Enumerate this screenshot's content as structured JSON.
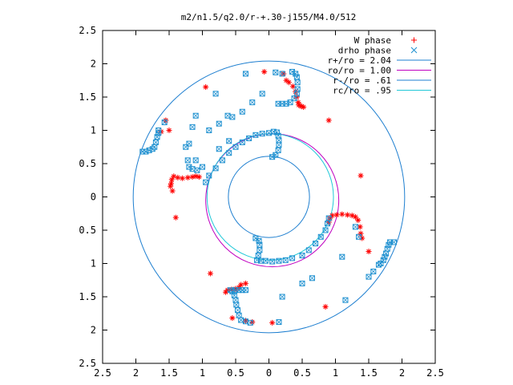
{
  "chart_data": {
    "type": "scatter",
    "title": "m2/n1.5/q2.0/r-+.30-j155/M4.0/512",
    "xlabel": "",
    "ylabel": "",
    "xlim": [
      -2.5,
      2.5
    ],
    "ylim": [
      -2.5,
      2.5
    ],
    "grid": false,
    "legend_position": "top-right",
    "x_ticks": [
      {
        "value": -2.5,
        "label": "2.5"
      },
      {
        "value": -2,
        "label": "2"
      },
      {
        "value": -1.5,
        "label": "1.5"
      },
      {
        "value": -1,
        "label": "1"
      },
      {
        "value": -0.5,
        "label": "0.5"
      },
      {
        "value": 0,
        "label": "0"
      },
      {
        "value": 0.5,
        "label": "0.5"
      },
      {
        "value": 1,
        "label": "1"
      },
      {
        "value": 1.5,
        "label": "1.5"
      },
      {
        "value": 2,
        "label": "2"
      },
      {
        "value": 2.5,
        "label": "2.5"
      }
    ],
    "y_ticks": [
      {
        "value": 2.5,
        "label": "2.5"
      },
      {
        "value": 2,
        "label": "2"
      },
      {
        "value": 1.5,
        "label": "1.5"
      },
      {
        "value": 1,
        "label": "1"
      },
      {
        "value": 0.5,
        "label": "0.5"
      },
      {
        "value": 0,
        "label": "0"
      },
      {
        "value": -0.5,
        "label": "0.5"
      },
      {
        "value": -1,
        "label": "1"
      },
      {
        "value": -1.5,
        "label": "1.5"
      },
      {
        "value": -2,
        "label": "2"
      },
      {
        "value": -2.5,
        "label": "2.5"
      }
    ],
    "series": [
      {
        "name": "W phase",
        "marker": "plus-star",
        "color": "#ff0000",
        "points": [
          [
            0.3,
            1.72
          ],
          [
            0.36,
            1.66
          ],
          [
            0.4,
            1.58
          ],
          [
            0.42,
            1.5
          ],
          [
            0.44,
            1.42
          ],
          [
            0.47,
            1.37
          ],
          [
            0.52,
            1.35
          ],
          [
            0.26,
            1.75
          ],
          [
            0.22,
            1.85
          ],
          [
            -0.07,
            1.88
          ],
          [
            0.45,
            1.38
          ],
          [
            0.49,
            1.36
          ],
          [
            -1.43,
            0.31
          ],
          [
            -1.37,
            0.29
          ],
          [
            -1.3,
            0.28
          ],
          [
            -1.22,
            0.29
          ],
          [
            -1.15,
            0.3
          ],
          [
            -1.1,
            0.31
          ],
          [
            -1.05,
            0.3
          ],
          [
            -1.46,
            0.26
          ],
          [
            -1.47,
            0.2
          ],
          [
            -1.48,
            0.16
          ],
          [
            -1.45,
            0.09
          ],
          [
            -1.4,
            -0.31
          ],
          [
            -1.5,
            1.0
          ],
          [
            -1.55,
            1.15
          ],
          [
            -1.62,
            0.98
          ],
          [
            -0.95,
            1.65
          ],
          [
            0.95,
            -0.28
          ],
          [
            1.02,
            -0.27
          ],
          [
            1.1,
            -0.26
          ],
          [
            1.18,
            -0.27
          ],
          [
            1.25,
            -0.28
          ],
          [
            1.3,
            -0.3
          ],
          [
            1.34,
            -0.35
          ],
          [
            1.37,
            -0.45
          ],
          [
            1.38,
            -0.55
          ],
          [
            1.4,
            -0.62
          ],
          [
            0.92,
            -0.32
          ],
          [
            0.9,
            -0.38
          ],
          [
            1.38,
            0.32
          ],
          [
            1.5,
            -0.82
          ],
          [
            0.9,
            1.15
          ],
          [
            -0.42,
            -1.32
          ],
          [
            -0.45,
            -1.36
          ],
          [
            -0.5,
            -1.38
          ],
          [
            -0.56,
            -1.39
          ],
          [
            -0.62,
            -1.4
          ],
          [
            -0.65,
            -1.43
          ],
          [
            -0.35,
            -1.3
          ],
          [
            -0.88,
            -1.15
          ],
          [
            -0.25,
            -1.88
          ],
          [
            -0.35,
            -1.86
          ],
          [
            0.05,
            -1.89
          ],
          [
            0.85,
            -1.65
          ],
          [
            -0.55,
            -1.82
          ]
        ]
      },
      {
        "name": "drho phase",
        "marker": "x-square",
        "color": "#1e90d0",
        "points": [
          [
            0.35,
            1.88
          ],
          [
            0.4,
            1.85
          ],
          [
            0.42,
            1.8
          ],
          [
            0.43,
            1.72
          ],
          [
            0.43,
            1.62
          ],
          [
            0.42,
            1.55
          ],
          [
            0.38,
            1.48
          ],
          [
            0.32,
            1.42
          ],
          [
            0.26,
            1.4
          ],
          [
            0.2,
            1.4
          ],
          [
            0.14,
            1.4
          ],
          [
            0.1,
            1.87
          ],
          [
            -0.35,
            1.85
          ],
          [
            0.2,
            1.85
          ],
          [
            -0.1,
            1.55
          ],
          [
            -0.25,
            1.42
          ],
          [
            -0.4,
            1.28
          ],
          [
            -0.55,
            1.2
          ],
          [
            -0.75,
            1.1
          ],
          [
            -0.9,
            1.0
          ],
          [
            -1.1,
            1.22
          ],
          [
            -1.15,
            1.05
          ],
          [
            -1.2,
            0.8
          ],
          [
            -1.25,
            0.75
          ],
          [
            -1.22,
            0.55
          ],
          [
            -1.2,
            0.45
          ],
          [
            -1.15,
            0.42
          ],
          [
            -1.08,
            0.4
          ],
          [
            -0.8,
            1.55
          ],
          [
            -0.62,
            1.22
          ],
          [
            -1.85,
            0.68
          ],
          [
            -1.8,
            0.7
          ],
          [
            -1.75,
            0.72
          ],
          [
            -1.72,
            0.75
          ],
          [
            -1.7,
            0.82
          ],
          [
            -1.68,
            0.9
          ],
          [
            -1.66,
            0.96
          ],
          [
            -1.66,
            1.0
          ],
          [
            -1.9,
            0.68
          ],
          [
            -1.57,
            1.12
          ],
          [
            0.07,
            0.98
          ],
          [
            0.12,
            0.97
          ],
          [
            0.14,
            0.92
          ],
          [
            0.15,
            0.85
          ],
          [
            0.15,
            0.78
          ],
          [
            0.14,
            0.7
          ],
          [
            0.1,
            0.63
          ],
          [
            0.05,
            0.6
          ],
          [
            0.0,
            0.96
          ],
          [
            -0.1,
            0.95
          ],
          [
            -0.2,
            0.93
          ],
          [
            -0.3,
            0.88
          ],
          [
            -0.4,
            0.82
          ],
          [
            -0.5,
            0.75
          ],
          [
            -0.6,
            0.66
          ],
          [
            -0.7,
            0.55
          ],
          [
            -0.8,
            0.43
          ],
          [
            -0.9,
            0.32
          ],
          [
            -0.95,
            0.22
          ],
          [
            -1.0,
            0.45
          ],
          [
            -1.1,
            0.55
          ],
          [
            -0.75,
            0.72
          ],
          [
            -0.6,
            0.84
          ],
          [
            -0.2,
            -0.62
          ],
          [
            -0.15,
            -0.66
          ],
          [
            -0.14,
            -0.72
          ],
          [
            -0.14,
            -0.8
          ],
          [
            -0.16,
            -0.88
          ],
          [
            -0.18,
            -0.95
          ],
          [
            -0.12,
            -0.96
          ],
          [
            -0.05,
            -0.96
          ],
          [
            0.05,
            -0.97
          ],
          [
            0.15,
            -0.96
          ],
          [
            0.25,
            -0.95
          ],
          [
            0.35,
            -0.92
          ],
          [
            0.5,
            -0.88
          ],
          [
            0.6,
            -0.8
          ],
          [
            0.7,
            -0.7
          ],
          [
            0.78,
            -0.6
          ],
          [
            0.85,
            -0.5
          ],
          [
            0.88,
            -0.4
          ],
          [
            0.9,
            -0.32
          ],
          [
            -0.55,
            -1.42
          ],
          [
            -0.52,
            -1.48
          ],
          [
            -0.5,
            -1.55
          ],
          [
            -0.49,
            -1.62
          ],
          [
            -0.47,
            -1.7
          ],
          [
            -0.45,
            -1.78
          ],
          [
            -0.42,
            -1.85
          ],
          [
            -0.35,
            -1.87
          ],
          [
            -0.28,
            -1.89
          ],
          [
            -0.58,
            -1.4
          ],
          [
            -0.5,
            -1.4
          ],
          [
            -0.45,
            -1.4
          ],
          [
            -0.4,
            -1.4
          ],
          [
            -0.35,
            -1.4
          ],
          [
            0.15,
            -1.88
          ],
          [
            0.2,
            -1.5
          ],
          [
            0.5,
            -1.3
          ],
          [
            0.65,
            -1.22
          ],
          [
            1.1,
            -0.9
          ],
          [
            1.15,
            -1.55
          ],
          [
            1.3,
            -0.45
          ],
          [
            1.35,
            -0.6
          ],
          [
            1.82,
            -0.68
          ],
          [
            1.8,
            -0.72
          ],
          [
            1.78,
            -0.78
          ],
          [
            1.76,
            -0.85
          ],
          [
            1.74,
            -0.9
          ],
          [
            1.72,
            -0.95
          ],
          [
            1.68,
            -1.0
          ],
          [
            1.65,
            -1.02
          ],
          [
            1.88,
            -0.68
          ],
          [
            1.57,
            -1.12
          ],
          [
            1.5,
            -1.2
          ]
        ]
      }
    ],
    "circles": [
      {
        "name": "r+/ro = 2.04",
        "radius": 2.04,
        "cx": 0,
        "cy": 0,
        "color": "#1e7fd0"
      },
      {
        "name": "ro/ro = 1.00",
        "radius": 1.0,
        "cx": 0.05,
        "cy": -0.05,
        "color": "#c000c0"
      },
      {
        "name": "r-/ro = .61",
        "radius": 0.61,
        "cx": 0,
        "cy": 0,
        "color": "#1e7fd0"
      },
      {
        "name": "rc/ro = .95",
        "radius": 0.95,
        "cx": 0.02,
        "cy": 0,
        "color": "#20c8d8"
      }
    ]
  }
}
